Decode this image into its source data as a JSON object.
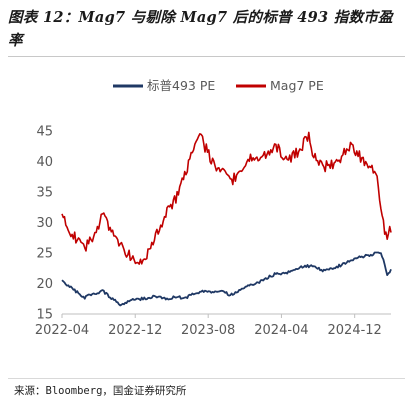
{
  "header": {
    "title": "图表 12：Mag7 与剔除 Mag7 后的标普 493 指数市盈率"
  },
  "footer": {
    "source": "来源：Bloomberg，国金证券研究所"
  },
  "colors": {
    "sp493": "#1f3864",
    "mag7": "#c00000",
    "axis_text": "#595959"
  },
  "chart_data": {
    "type": "line",
    "title": "",
    "xlabel": "",
    "ylabel": "",
    "ylim": [
      15,
      45
    ],
    "yticks": [
      15,
      20,
      25,
      30,
      35,
      40,
      45
    ],
    "xlim": [
      "2022-04-01",
      "2025-04-01"
    ],
    "xticks": [
      "2022-04",
      "2022-12",
      "2023-08",
      "2024-04",
      "2024-12"
    ],
    "grid": false,
    "legend": "top",
    "series": [
      {
        "name": "标普493 PE",
        "color": "#1f3864",
        "x": [
          "2022-04-01",
          "2022-05-01",
          "2022-06-15",
          "2022-07-01",
          "2022-08-15",
          "2022-09-15",
          "2022-10-15",
          "2022-11-15",
          "2022-12-15",
          "2023-01-15",
          "2023-02-15",
          "2023-03-15",
          "2023-04-15",
          "2023-05-15",
          "2023-06-15",
          "2023-07-15",
          "2023-08-15",
          "2023-09-15",
          "2023-10-15",
          "2023-11-15",
          "2023-12-15",
          "2024-01-15",
          "2024-02-15",
          "2024-03-15",
          "2024-04-15",
          "2024-05-15",
          "2024-06-15",
          "2024-07-15",
          "2024-08-15",
          "2024-09-15",
          "2024-10-15",
          "2024-11-15",
          "2024-12-15",
          "2025-01-15",
          "2025-02-15",
          "2025-03-01",
          "2025-03-10",
          "2025-03-20",
          "2025-04-01"
        ],
        "values": [
          20.4,
          19.4,
          17.6,
          18.1,
          18.8,
          17.5,
          16.5,
          17.2,
          17.4,
          17.7,
          17.9,
          17.5,
          17.8,
          17.6,
          18.3,
          18.8,
          18.5,
          18.8,
          18.1,
          18.9,
          19.8,
          20.2,
          21.0,
          21.6,
          21.6,
          22.4,
          22.8,
          22.9,
          22.1,
          22.4,
          23.0,
          23.6,
          24.3,
          24.6,
          25.0,
          24.7,
          23.3,
          21.4,
          22.2
        ]
      },
      {
        "name": "Mag7 PE",
        "color": "#c00000",
        "x": [
          "2022-04-01",
          "2022-04-15",
          "2022-05-15",
          "2022-06-15",
          "2022-07-15",
          "2022-08-15",
          "2022-09-15",
          "2022-10-15",
          "2022-11-15",
          "2022-12-15",
          "2023-01-15",
          "2023-02-15",
          "2023-03-15",
          "2023-04-15",
          "2023-05-15",
          "2023-06-15",
          "2023-07-01",
          "2023-07-15",
          "2023-08-15",
          "2023-09-15",
          "2023-10-15",
          "2023-11-15",
          "2023-12-15",
          "2024-01-15",
          "2024-02-15",
          "2024-03-15",
          "2024-04-15",
          "2024-05-15",
          "2024-06-15",
          "2024-07-01",
          "2024-07-15",
          "2024-08-15",
          "2024-09-15",
          "2024-10-15",
          "2024-11-15",
          "2024-12-15",
          "2025-01-15",
          "2025-02-15",
          "2025-03-01",
          "2025-03-10",
          "2025-03-20",
          "2025-04-01"
        ],
        "values": [
          31.5,
          29.5,
          27.5,
          25.5,
          28.0,
          31.0,
          28.5,
          26.0,
          24.5,
          23.0,
          25.0,
          28.5,
          31.5,
          34.0,
          38.0,
          42.0,
          44.5,
          43.0,
          40.0,
          38.5,
          36.5,
          38.5,
          40.5,
          40.5,
          41.5,
          42.5,
          40.0,
          41.0,
          43.0,
          44.0,
          41.5,
          39.0,
          39.5,
          40.5,
          42.5,
          41.0,
          39.5,
          37.0,
          32.0,
          29.0,
          27.5,
          29.0
        ]
      }
    ]
  }
}
